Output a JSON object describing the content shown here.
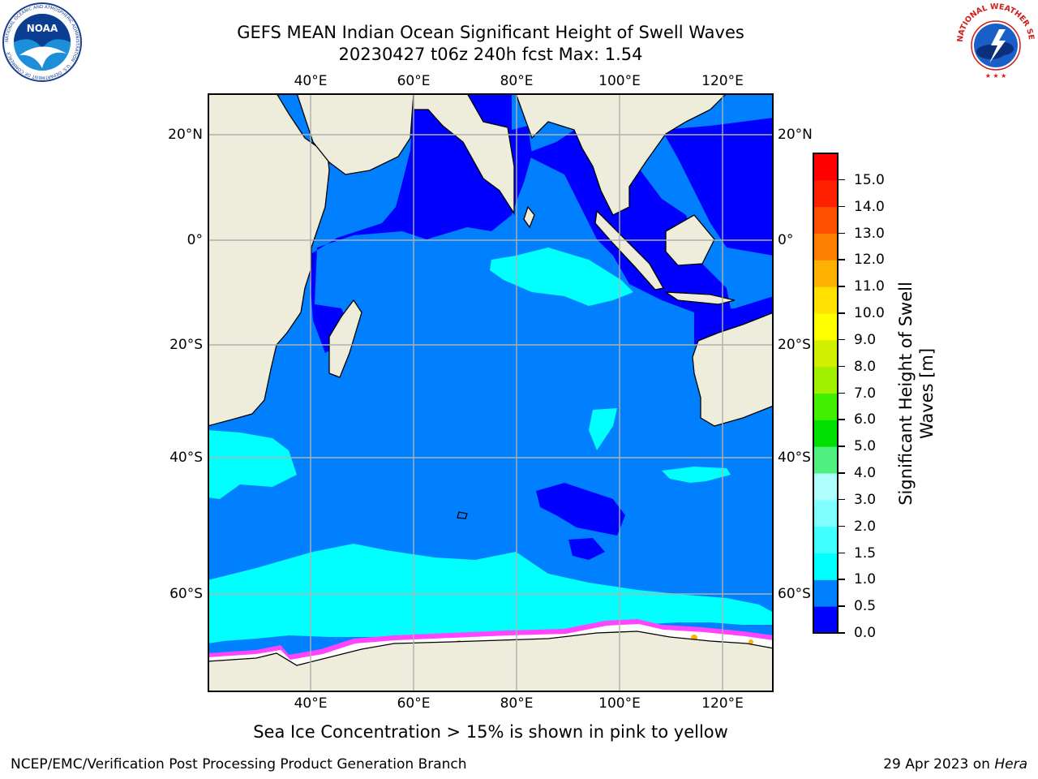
{
  "header": {
    "title_line1": "GEFS MEAN Indian Ocean Significant Height of Swell Waves",
    "title_line2": "20230427 t06z 240h fcst   Max: 1.54"
  },
  "map": {
    "lon_labels_top": [
      "40°E",
      "60°E",
      "80°E",
      "100°E",
      "120°E"
    ],
    "lon_labels_bottom": [
      "40°E",
      "60°E",
      "80°E",
      "100°E",
      "120°E"
    ],
    "lat_labels_left": [
      "20°N",
      "0°",
      "20°S",
      "40°S",
      "60°S"
    ],
    "lat_labels_right": [
      "20°N",
      "0°",
      "20°S",
      "40°S",
      "60°S"
    ],
    "land_color": "#eeeddc",
    "ice_color": "#ffffff",
    "grid_color": "#b0b0b0",
    "max_value": 1.54
  },
  "colorbar": {
    "title_line1": "Significant Height of Swell",
    "title_line2": "Waves [m]",
    "ticks": [
      "0.0",
      "0.5",
      "1.0",
      "1.5",
      "2.0",
      "3.0",
      "4.0",
      "5.0",
      "6.0",
      "7.0",
      "8.0",
      "9.0",
      "10.0",
      "11.0",
      "12.0",
      "13.0",
      "14.0",
      "15.0"
    ],
    "colors": [
      "#0000ff",
      "#0080ff",
      "#00ffff",
      "#40ffff",
      "#80ffff",
      "#b0ffff",
      "#50f080",
      "#00e000",
      "#40f000",
      "#a0f000",
      "#d0f000",
      "#ffff00",
      "#ffe000",
      "#ffb000",
      "#ff8000",
      "#ff5000",
      "#ff2000",
      "#ff0000"
    ]
  },
  "notes": {
    "ice_note": "Sea Ice Concentration > 15% is shown in pink to yellow"
  },
  "footer": {
    "left": "NCEP/EMC/Verification Post Processing Product Generation Branch",
    "right_date": "29 Apr 2023 on ",
    "right_host": "Hera"
  },
  "logos": {
    "noaa_text": "NOAA",
    "noaa_ring": "NATIONAL OCEANIC AND ATMOSPHERIC ADMINISTRATION · U.S. DEPARTMENT OF COMMERCE",
    "nws_ring": "NATIONAL WEATHER SERVICE"
  }
}
